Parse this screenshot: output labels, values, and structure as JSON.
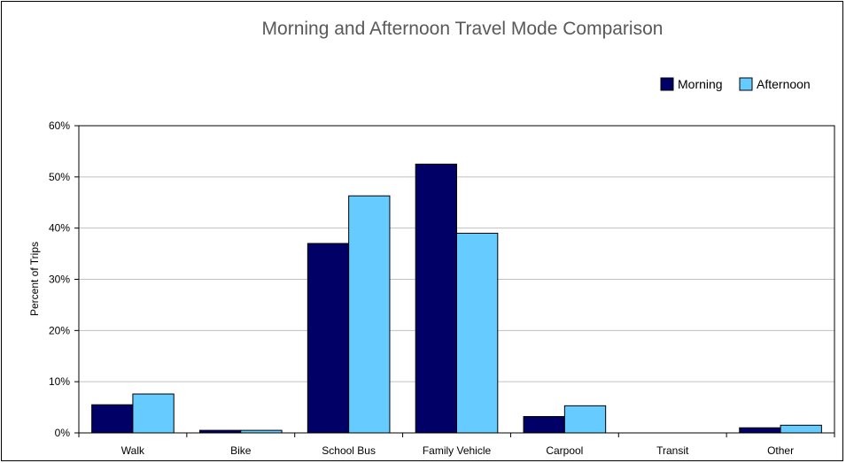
{
  "chart_data": {
    "type": "bar",
    "title": "Morning and Afternoon Travel Mode Comparison",
    "xlabel": "",
    "ylabel": "Percent of Trips",
    "categories": [
      "Walk",
      "Bike",
      "School Bus",
      "Family Vehicle",
      "Carpool",
      "Transit",
      "Other"
    ],
    "series": [
      {
        "name": "Morning",
        "color": "#000066",
        "values": [
          5.5,
          0.5,
          37,
          52.5,
          3.2,
          0,
          1
        ]
      },
      {
        "name": "Afternoon",
        "color": "#66ccff",
        "values": [
          7.6,
          0.5,
          46.3,
          39,
          5.3,
          0,
          1.5
        ]
      }
    ],
    "ylim": [
      0,
      60
    ],
    "yticks": [
      0,
      10,
      20,
      30,
      40,
      50,
      60
    ],
    "ytick_labels": [
      "0%",
      "10%",
      "20%",
      "30%",
      "40%",
      "50%",
      "60%"
    ],
    "grid": true,
    "legend_position": "top-right"
  }
}
